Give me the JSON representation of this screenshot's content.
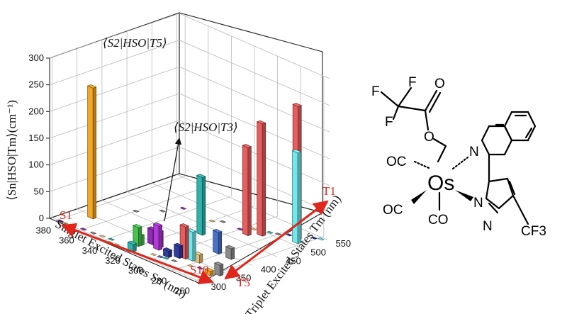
{
  "chart_data": {
    "type": "bar3d",
    "title": "",
    "zlabel": "⟨Sn|HSO|Tm⟩(cm⁻¹)",
    "xlabel": "Singlet Excited States Sn (nm)",
    "ylabel": "Triplet Excited States Tm (nm)",
    "xlim": [
      255,
      385
    ],
    "ylim": [
      295,
      555
    ],
    "zlim": [
      0,
      300
    ],
    "z_ticks": [
      0,
      50,
      100,
      150,
      200,
      250,
      300
    ],
    "x_ticks": [
      380,
      360,
      340,
      320,
      300,
      280,
      260
    ],
    "y_ticks": [
      300,
      350,
      400,
      450,
      500,
      550
    ],
    "grid": true,
    "state_labels": {
      "s_first": "S1",
      "s_last": "S10",
      "t_first": "T1",
      "t_last": "T5"
    },
    "annotations": [
      {
        "text": "⟨S2|HSO|T5⟩",
        "target": "S2-T5"
      },
      {
        "text": "⟨S2|HSO|T3⟩",
        "target": "S2-T3"
      }
    ],
    "bars": [
      {
        "s": 370,
        "t": 345,
        "z": 245,
        "color": "#f5a623"
      },
      {
        "s": 318,
        "t": 305,
        "z": 14,
        "color": "#2fb3ad"
      },
      {
        "s": 322,
        "t": 330,
        "z": 18,
        "color": "#46c34f"
      },
      {
        "s": 322,
        "t": 325,
        "z": 35,
        "color": "#46c34f"
      },
      {
        "s": 318,
        "t": 345,
        "z": 28,
        "color": "#8f2bb5"
      },
      {
        "s": 312,
        "t": 345,
        "z": 30,
        "color": "#8f2bb5"
      },
      {
        "s": 310,
        "t": 338,
        "z": 45,
        "color": "#b23ad9"
      },
      {
        "s": 310,
        "t": 425,
        "z": 108,
        "color": "#2fb3ad"
      },
      {
        "s": 300,
        "t": 375,
        "z": 30,
        "color": "#8f2bb5"
      },
      {
        "s": 298,
        "t": 330,
        "z": 12,
        "color": "#2f3c9b"
      },
      {
        "s": 293,
        "t": 340,
        "z": 22,
        "color": "#2f3c9b"
      },
      {
        "s": 290,
        "t": 345,
        "z": 60,
        "color": "#e85d5d"
      },
      {
        "s": 285,
        "t": 348,
        "z": 54,
        "color": "#6fe9ee"
      },
      {
        "s": 292,
        "t": 475,
        "z": 165,
        "color": "#e85d5d"
      },
      {
        "s": 286,
        "t": 490,
        "z": 210,
        "color": "#e85d5d"
      },
      {
        "s": 283,
        "t": 395,
        "z": 40,
        "color": "#4a72c8"
      },
      {
        "s": 280,
        "t": 350,
        "z": 15,
        "color": "#e8c07a"
      },
      {
        "s": 272,
        "t": 395,
        "z": 20,
        "color": "#8a8a8a"
      },
      {
        "s": 268,
        "t": 520,
        "z": 250,
        "color": "#e85d5d"
      },
      {
        "s": 264,
        "t": 510,
        "z": 170,
        "color": "#6fe9ee"
      },
      {
        "s": 262,
        "t": 330,
        "z": 8,
        "color": "#f5a623"
      },
      {
        "s": 258,
        "t": 340,
        "z": 20,
        "color": "#8a8a8a"
      }
    ],
    "flat_bars": [
      {
        "s": 378,
        "t": 300,
        "color": "#8f2bb5"
      },
      {
        "s": 374,
        "t": 300,
        "color": "#e8c07a"
      },
      {
        "s": 368,
        "t": 302,
        "color": "#8f2bb5"
      },
      {
        "s": 360,
        "t": 305,
        "color": "#8f2bb5"
      },
      {
        "s": 352,
        "t": 306,
        "color": "#8a8a8a"
      },
      {
        "s": 345,
        "t": 308,
        "color": "#e8c07a"
      },
      {
        "s": 335,
        "t": 300,
        "color": "#f5a623"
      },
      {
        "s": 330,
        "t": 302,
        "color": "#e8c07a"
      },
      {
        "s": 325,
        "t": 298,
        "color": "#f5a623"
      },
      {
        "s": 318,
        "t": 300,
        "color": "#e8c07a"
      },
      {
        "s": 338,
        "t": 310,
        "color": "#2fb3ad"
      },
      {
        "s": 305,
        "t": 318,
        "color": "#e8c07a"
      },
      {
        "s": 300,
        "t": 320,
        "color": "#4a72c8"
      },
      {
        "s": 296,
        "t": 322,
        "color": "#2fb3ad"
      },
      {
        "s": 290,
        "t": 325,
        "color": "#8a8a8a"
      },
      {
        "s": 278,
        "t": 330,
        "color": "#e8c07a"
      },
      {
        "s": 272,
        "t": 335,
        "color": "#8f2bb5"
      },
      {
        "s": 360,
        "t": 410,
        "color": "#8a8a8a"
      },
      {
        "s": 350,
        "t": 440,
        "color": "#8a8a8a"
      },
      {
        "s": 345,
        "t": 470,
        "color": "#8f2bb5"
      },
      {
        "s": 320,
        "t": 470,
        "color": "#e8c07a"
      },
      {
        "s": 315,
        "t": 480,
        "color": "#8a8a8a"
      },
      {
        "s": 300,
        "t": 480,
        "color": "#8f2bb5"
      },
      {
        "s": 295,
        "t": 495,
        "color": "#e8c07a"
      },
      {
        "s": 285,
        "t": 505,
        "color": "#2fb3ad"
      },
      {
        "s": 280,
        "t": 510,
        "color": "#8a8a8a"
      },
      {
        "s": 275,
        "t": 520,
        "color": "#2f3c9b"
      },
      {
        "s": 270,
        "t": 525,
        "color": "#8f2bb5"
      },
      {
        "s": 262,
        "t": 540,
        "color": "#2f3c9b"
      },
      {
        "s": 258,
        "t": 545,
        "color": "#6fe9ee"
      }
    ]
  },
  "molecule": {
    "metal": "Os",
    "ligands": {
      "f_top_left": "F",
      "f_top_mid": "F",
      "f_left": "F",
      "carbonyl_o": "O",
      "ester_o": "O",
      "co_top_left": "OC",
      "co_bottom_left": "OC",
      "co_bottom": "CO",
      "n_isoquinoline": "N",
      "n_pyrazole_1": "N",
      "n_pyrazole_2": "N",
      "cf3": "CF3"
    }
  }
}
